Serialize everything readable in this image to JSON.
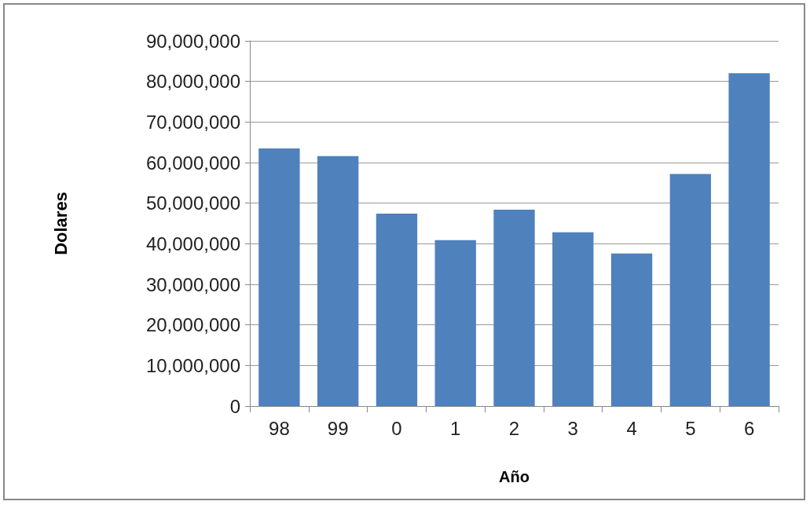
{
  "chart_data": {
    "type": "bar",
    "xlabel": "Año",
    "ylabel": "Dolares",
    "categories": [
      "98",
      "99",
      "0",
      "1",
      "2",
      "3",
      "4",
      "5",
      "6"
    ],
    "values": [
      63500000,
      61600000,
      47400000,
      40900000,
      48400000,
      42800000,
      37600000,
      57200000,
      82000000
    ],
    "color": "#4f81bd",
    "ylim": [
      0,
      90000000
    ],
    "yticks": [
      {
        "value": 0,
        "label": "0"
      },
      {
        "value": 10000000,
        "label": "10,000,000"
      },
      {
        "value": 20000000,
        "label": "20,000,000"
      },
      {
        "value": 30000000,
        "label": "30,000,000"
      },
      {
        "value": 40000000,
        "label": "40,000,000"
      },
      {
        "value": 50000000,
        "label": "50,000,000"
      },
      {
        "value": 60000000,
        "label": "60,000,000"
      },
      {
        "value": 70000000,
        "label": "70,000,000"
      },
      {
        "value": 80000000,
        "label": "80,000,000"
      },
      {
        "value": 90000000,
        "label": "90,000,000"
      }
    ],
    "grid": "y"
  }
}
